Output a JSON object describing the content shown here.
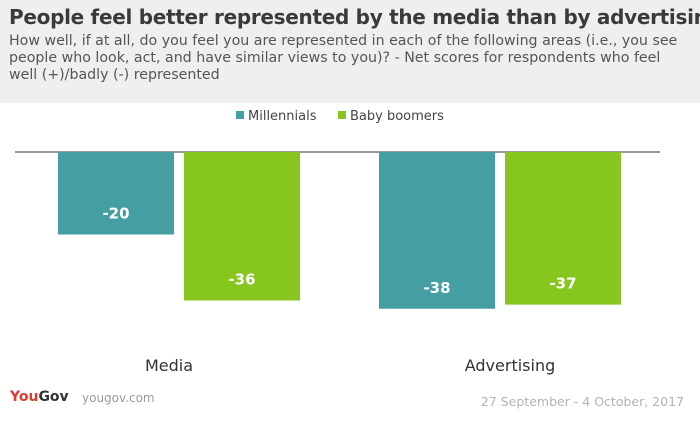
{
  "title": "People feel better represented by the media than by advertising",
  "subtitle": "How well, if at all, do you feel you are represented in each of the following areas (i.e., you see people who look, act, and have similar views to you)? - Net scores for respondents who feel well (+)/badly (-) represented",
  "footer": {
    "logo_you": "You",
    "logo_gov": "Gov",
    "url": "yougov.com",
    "date": "27 September - 4 October, 2017"
  },
  "colors": {
    "millennials": "#459fa2",
    "baby_boomers": "#86c61f"
  },
  "chart_data": {
    "type": "bar",
    "categories": [
      "Media",
      "Advertising"
    ],
    "series": [
      {
        "name": "Millennials",
        "values": [
          -20,
          -38
        ]
      },
      {
        "name": "Baby boomers",
        "values": [
          -36,
          -37
        ]
      }
    ],
    "ylim": [
      -40,
      0
    ],
    "grid": false,
    "legend": "top-center",
    "data_labels": true
  }
}
